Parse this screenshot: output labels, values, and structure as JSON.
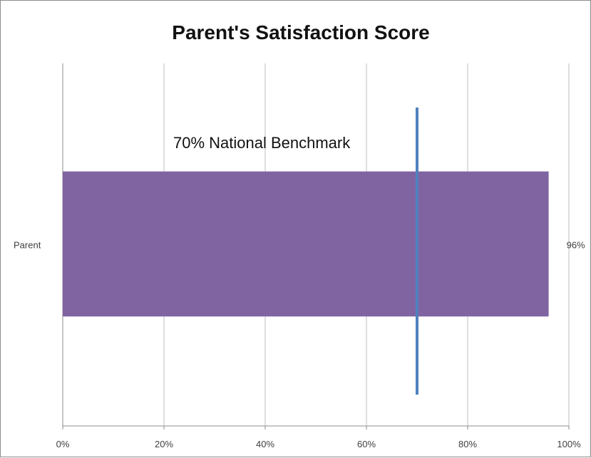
{
  "chart_data": {
    "type": "bar",
    "orientation": "horizontal",
    "title": "Parent's Satisfaction Score",
    "categories": [
      "Parent"
    ],
    "values": [
      96
    ],
    "data_labels": [
      "96%"
    ],
    "xlim": [
      0,
      100
    ],
    "x_ticks": [
      0,
      20,
      40,
      60,
      80,
      100
    ],
    "x_tick_labels": [
      "0%",
      "20%",
      "40%",
      "60%",
      "80%",
      "100%"
    ],
    "grid": true,
    "bar_color": "#8064a2",
    "reference_line": {
      "value": 70,
      "label": "70% National Benchmark",
      "color": "#4f81bd"
    }
  }
}
